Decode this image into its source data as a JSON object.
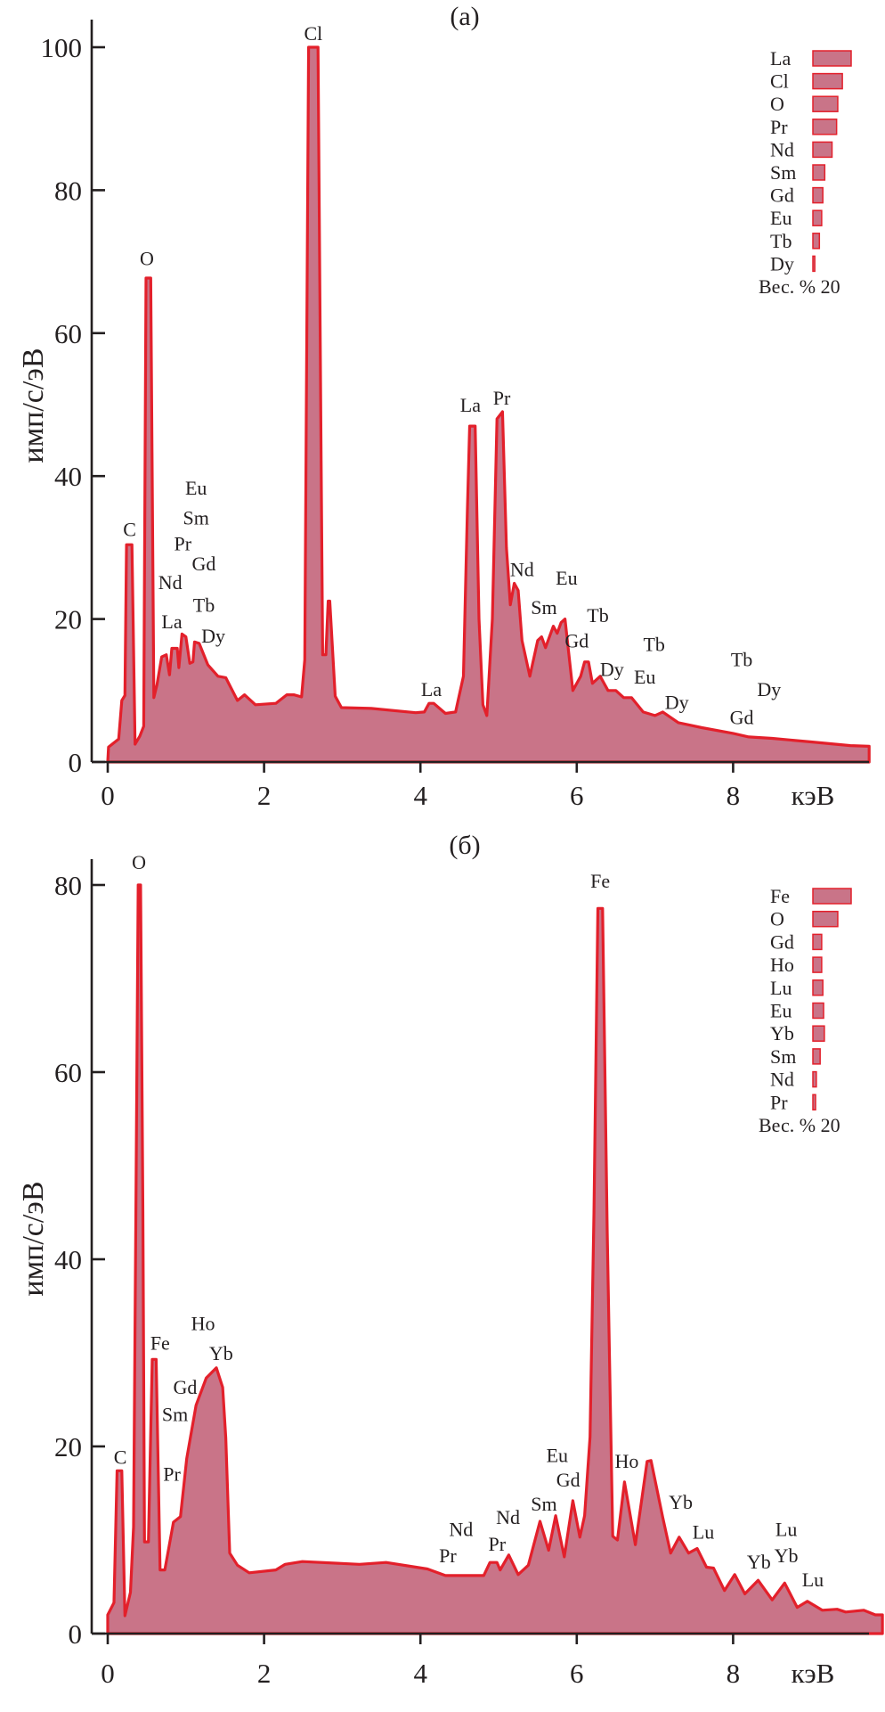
{
  "colors": {
    "fill": "#c97488",
    "line": "#e3202b",
    "axis": "#231f20"
  },
  "chart_data": [
    {
      "type": "area",
      "title": "(a)",
      "xlabel": "кэВ",
      "ylabel": "имп/с/эВ",
      "xlim": [
        0,
        9.9
      ],
      "ylim": [
        0,
        104
      ],
      "xticks": [
        0,
        2,
        4,
        6,
        8
      ],
      "yticks": [
        0,
        20,
        40,
        60,
        80,
        100
      ],
      "grid": false,
      "series": [
        {
          "name": "spectrum",
          "x": [
            0,
            0.01,
            0.14,
            0.18,
            0.22,
            0.24,
            0.31,
            0.35,
            0.41,
            0.46,
            0.49,
            0.55,
            0.59,
            0.63,
            0.69,
            0.75,
            0.79,
            0.82,
            0.89,
            0.91,
            0.95,
            1.0,
            1.05,
            1.09,
            1.11,
            1.17,
            1.28,
            1.41,
            1.51,
            1.66,
            1.75,
            1.89,
            2.15,
            2.29,
            2.38,
            2.48,
            2.52,
            2.57,
            2.69,
            2.73,
            2.75,
            2.79,
            2.82,
            2.84,
            2.91,
            2.99,
            3.37,
            3.94,
            4.05,
            4.11,
            4.17,
            4.32,
            4.45,
            4.55,
            4.6,
            4.63,
            4.7,
            4.75,
            4.8,
            4.85,
            4.92,
            4.98,
            5.05,
            5.1,
            5.15,
            5.2,
            5.25,
            5.3,
            5.4,
            5.5,
            5.55,
            5.6,
            5.7,
            5.75,
            5.8,
            5.85,
            5.9,
            5.95,
            6.05,
            6.1,
            6.15,
            6.2,
            6.3,
            6.4,
            6.5,
            6.6,
            6.7,
            6.85,
            7.0,
            7.1,
            7.3,
            7.6,
            8.0,
            8.2,
            8.5,
            9.0,
            9.5,
            9.74
          ],
          "y": [
            0,
            2.1,
            3.2,
            8.6,
            9.3,
            30.4,
            30.4,
            2.5,
            3.6,
            5.0,
            67.7,
            67.7,
            9.0,
            10.8,
            14.7,
            15,
            12.2,
            15.9,
            15.9,
            13.2,
            17.9,
            17.5,
            13.8,
            14,
            16.8,
            16.6,
            13.6,
            12,
            11.8,
            8.6,
            9.4,
            8,
            8.2,
            9.4,
            9.4,
            9.1,
            14.3,
            100,
            100,
            42,
            15,
            15,
            22.5,
            22.5,
            9.2,
            7.6,
            7.5,
            6.9,
            7,
            8.2,
            8.2,
            6.8,
            7,
            12,
            35,
            47,
            47,
            20,
            8,
            6.5,
            20,
            48,
            49,
            30,
            22,
            25,
            24,
            17,
            12,
            17,
            17.5,
            16,
            19,
            18,
            19.5,
            20,
            15,
            10,
            12,
            14,
            14,
            11,
            12,
            10,
            10,
            9,
            9,
            7,
            6.5,
            7,
            5.5,
            4.8,
            4,
            3.5,
            3.3,
            2.8,
            2.3,
            2.2
          ]
        }
      ],
      "annotations": [
        {
          "text": "C",
          "x": 0.28,
          "y": 32.6
        },
        {
          "text": "O",
          "x": 0.5,
          "y": 70.5
        },
        {
          "text": "Cl",
          "x": 2.63,
          "y": 102
        },
        {
          "text": "Eu",
          "x": 1.13,
          "y": 38.4
        },
        {
          "text": "Sm",
          "x": 1.13,
          "y": 34.2
        },
        {
          "text": "Pr",
          "x": 0.96,
          "y": 30.6
        },
        {
          "text": "Gd",
          "x": 1.23,
          "y": 27.8
        },
        {
          "text": "Nd",
          "x": 0.8,
          "y": 25.2
        },
        {
          "text": "Tb",
          "x": 1.23,
          "y": 22
        },
        {
          "text": "La",
          "x": 0.82,
          "y": 19.7
        },
        {
          "text": "Dy",
          "x": 1.35,
          "y": 17.7
        },
        {
          "text": "La",
          "x": 4.14,
          "y": 10.2
        },
        {
          "text": "La",
          "x": 4.64,
          "y": 50
        },
        {
          "text": "Pr",
          "x": 5.04,
          "y": 51
        },
        {
          "text": "Nd",
          "x": 5.3,
          "y": 27
        },
        {
          "text": "Eu",
          "x": 5.87,
          "y": 25.8
        },
        {
          "text": "Sm",
          "x": 5.58,
          "y": 21.7
        },
        {
          "text": "Tb",
          "x": 6.27,
          "y": 20.6
        },
        {
          "text": "Gd",
          "x": 6.0,
          "y": 17
        },
        {
          "text": "Dy",
          "x": 6.45,
          "y": 13
        },
        {
          "text": "Tb",
          "x": 6.99,
          "y": 16.5
        },
        {
          "text": "Eu",
          "x": 6.87,
          "y": 12
        },
        {
          "text": "Dy",
          "x": 7.28,
          "y": 8.4
        },
        {
          "text": "Tb",
          "x": 8.11,
          "y": 14.4
        },
        {
          "text": "Dy",
          "x": 8.46,
          "y": 10.2
        },
        {
          "text": "Gd",
          "x": 8.11,
          "y": 6.3
        }
      ],
      "legend": {
        "placement": "top-right",
        "items": [
          {
            "label": "La",
            "relative_value": 1.0
          },
          {
            "label": "Cl",
            "relative_value": 0.77
          },
          {
            "label": "O",
            "relative_value": 0.65
          },
          {
            "label": "Pr",
            "relative_value": 0.62
          },
          {
            "label": "Nd",
            "relative_value": 0.5
          },
          {
            "label": "Sm",
            "relative_value": 0.31
          },
          {
            "label": "Gd",
            "relative_value": 0.26
          },
          {
            "label": "Eu",
            "relative_value": 0.23
          },
          {
            "label": "Tb",
            "relative_value": 0.17
          },
          {
            "label": "Dy",
            "relative_value": 0.05
          }
        ],
        "scale_label": "Вес. % 20"
      }
    },
    {
      "type": "area",
      "title": "(б)",
      "xlabel": "кэВ",
      "ylabel": "имп/с/эВ",
      "xlim": [
        0,
        9.9
      ],
      "ylim": [
        0,
        83
      ],
      "xticks": [
        0,
        2,
        4,
        6,
        8
      ],
      "yticks": [
        0,
        20,
        40,
        60,
        80
      ],
      "grid": false,
      "series": [
        {
          "name": "spectrum",
          "x": [
            0,
            0,
            0.08,
            0.12,
            0.18,
            0.22,
            0.29,
            0.33,
            0.36,
            0.39,
            0.42,
            0.45,
            0.47,
            0.52,
            0.57,
            0.62,
            0.67,
            0.73,
            0.84,
            0.93,
            1.01,
            1.13,
            1.26,
            1.39,
            1.47,
            1.51,
            1.56,
            1.66,
            1.81,
            2.15,
            2.27,
            2.49,
            3.22,
            3.56,
            4.09,
            4.32,
            4.81,
            4.89,
            4.98,
            5.02,
            5.13,
            5.25,
            5.38,
            5.53,
            5.64,
            5.73,
            5.84,
            5.95,
            6.04,
            6.1,
            6.17,
            6.22,
            6.27,
            6.33,
            6.39,
            6.46,
            6.52,
            6.61,
            6.75,
            6.9,
            6.95,
            7.1,
            7.2,
            7.31,
            7.43,
            7.54,
            7.66,
            7.75,
            7.89,
            8.02,
            8.15,
            8.32,
            8.5,
            8.66,
            8.82,
            8.95,
            9.14,
            9.33,
            9.44,
            9.67,
            9.82,
            9.91
          ],
          "y": [
            0,
            2.0,
            3.3,
            17.4,
            17.4,
            1.9,
            4.4,
            11.4,
            45,
            80,
            80,
            45,
            9.8,
            9.8,
            29.3,
            29.3,
            6.8,
            6.8,
            11.9,
            12.5,
            18.7,
            24.4,
            27.3,
            28.4,
            26.3,
            20.9,
            8.6,
            7.3,
            6.5,
            6.8,
            7.4,
            7.7,
            7.4,
            7.6,
            6.9,
            6.2,
            6.2,
            7.6,
            7.6,
            6.8,
            8.4,
            6.3,
            7.3,
            12.0,
            8.9,
            12.6,
            8.2,
            14.2,
            10.3,
            12.6,
            21,
            45,
            77.5,
            77.5,
            43,
            10.4,
            10,
            16.2,
            9.5,
            18.4,
            18.5,
            12.4,
            8.6,
            10.3,
            8.6,
            9.1,
            7.1,
            7.0,
            4.6,
            6.3,
            4.25,
            5.7,
            3.6,
            5.4,
            2.8,
            3.45,
            2.5,
            2.6,
            2.3,
            2.5,
            2.0,
            2.0
          ]
        }
      ],
      "annotations": [
        {
          "text": "O",
          "x": 0.4,
          "y": 82.5
        },
        {
          "text": "C",
          "x": 0.16,
          "y": 18.9
        },
        {
          "text": "Fe",
          "x": 0.67,
          "y": 31.1
        },
        {
          "text": "Ho",
          "x": 1.22,
          "y": 33.2
        },
        {
          "text": "Yb",
          "x": 1.45,
          "y": 30.0
        },
        {
          "text": "Gd",
          "x": 0.99,
          "y": 26.4
        },
        {
          "text": "Sm",
          "x": 0.86,
          "y": 23.5
        },
        {
          "text": "Pr",
          "x": 0.82,
          "y": 17.1
        },
        {
          "text": "Fe",
          "x": 6.3,
          "y": 80.5
        },
        {
          "text": "Pr",
          "x": 4.35,
          "y": 8.4
        },
        {
          "text": "Nd",
          "x": 4.52,
          "y": 11.2
        },
        {
          "text": "Pr",
          "x": 4.98,
          "y": 9.6
        },
        {
          "text": "Nd",
          "x": 5.12,
          "y": 12.5
        },
        {
          "text": "Sm",
          "x": 5.58,
          "y": 13.9
        },
        {
          "text": "Eu",
          "x": 5.75,
          "y": 19.1
        },
        {
          "text": "Gd",
          "x": 5.89,
          "y": 16.5
        },
        {
          "text": "Ho",
          "x": 6.64,
          "y": 18.5
        },
        {
          "text": "Yb",
          "x": 7.33,
          "y": 14.1
        },
        {
          "text": "Lu",
          "x": 7.62,
          "y": 10.9
        },
        {
          "text": "Yb",
          "x": 8.33,
          "y": 7.7
        },
        {
          "text": "Yb",
          "x": 8.68,
          "y": 8.4
        },
        {
          "text": "Lu",
          "x": 8.68,
          "y": 11.2
        },
        {
          "text": "Lu",
          "x": 9.02,
          "y": 5.8
        }
      ],
      "legend": {
        "placement": "top-right",
        "items": [
          {
            "label": "Fe",
            "relative_value": 1.0
          },
          {
            "label": "O",
            "relative_value": 0.65
          },
          {
            "label": "Gd",
            "relative_value": 0.23
          },
          {
            "label": "Ho",
            "relative_value": 0.23
          },
          {
            "label": "Lu",
            "relative_value": 0.26
          },
          {
            "label": "Eu",
            "relative_value": 0.28
          },
          {
            "label": "Yb",
            "relative_value": 0.3
          },
          {
            "label": "Sm",
            "relative_value": 0.19
          },
          {
            "label": "Nd",
            "relative_value": 0.09
          },
          {
            "label": "Pr",
            "relative_value": 0.07
          }
        ],
        "scale_label": "Вес. % 20"
      }
    }
  ]
}
